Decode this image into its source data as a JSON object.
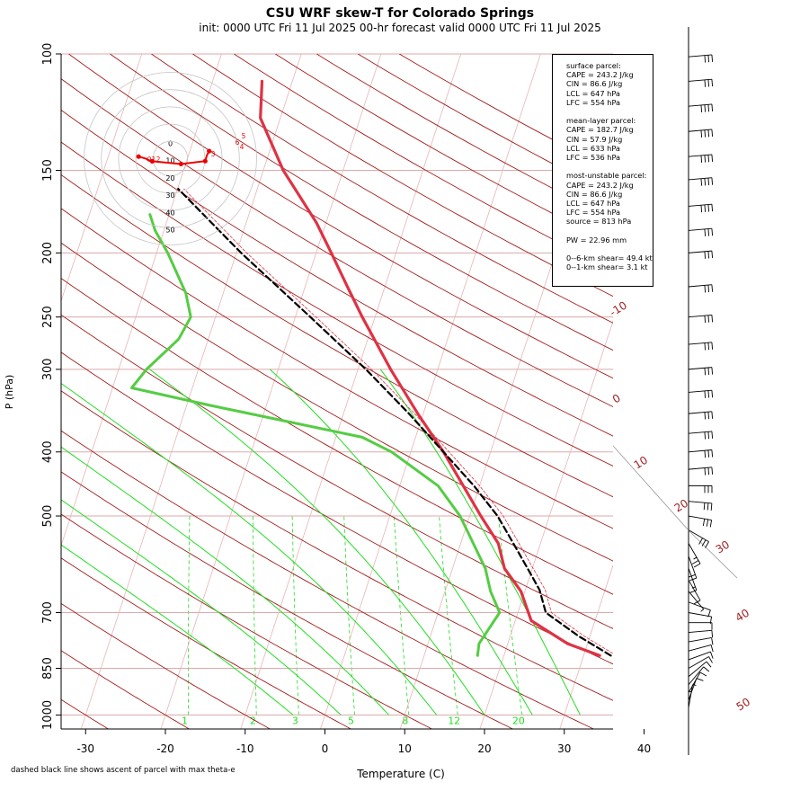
{
  "title": "CSU WRF skew-T for Colorado Springs",
  "subtitle": "init: 0000 UTC Fri 11 Jul 2025     00-hr forecast valid 0000 UTC Fri 11 Jul 2025",
  "footnote": "dashed black line shows ascent of parcel with max theta-e",
  "parcel_info": {
    "surface": [
      "surface parcel:",
      "CAPE = 243.2 J/kg",
      "CIN = 86.6 J/kg",
      "LCL = 647 hPa",
      "LFC = 554 hPa"
    ],
    "mean_layer": [
      "mean-layer parcel:",
      "CAPE = 182.7 J/kg",
      "CIN = 57.9 J/kg",
      "LCL = 633 hPa",
      "LFC = 536 hPa"
    ],
    "most_unstable": [
      "most-unstable parcel:",
      "CAPE = 243.2 J/kg",
      "CIN = 86.6 J/kg",
      "LCL = 647 hPa",
      "LFC = 554 hPa",
      "source = 813 hPa"
    ],
    "pw": [
      "PW =  22.96 mm"
    ],
    "shear": [
      "0--6-km shear= 49.4 kt",
      "0--1-km shear= 3.1 kt"
    ]
  },
  "colors": {
    "temperature": "#dd3344",
    "dewpoint": "#55cc44",
    "parcel": "#000000",
    "dry_adiabat": "#a01e1e",
    "moist_adiabat": "#22dd22",
    "isotherm": "#e8b4b4",
    "isobar": "#dcaaaa",
    "hodograph": "#ee0000"
  },
  "chart_data": {
    "type": "skew-t",
    "xlabel": "Temperature (C)",
    "ylabel": "P (hPa)",
    "pressure_ticks": [
      100,
      150,
      200,
      250,
      300,
      400,
      500,
      700,
      850,
      1000
    ],
    "temperature_ticks": [
      -30,
      -20,
      -10,
      0,
      10,
      20,
      30,
      40
    ],
    "xlim": [
      -33,
      45
    ],
    "ylim": [
      1050,
      100
    ],
    "dry_adiabat_labels": [
      "-10",
      "0",
      "10",
      "20",
      "30",
      "40",
      "50"
    ],
    "mixing_ratio_labels": [
      "1",
      "2",
      "3",
      "5",
      "8",
      "12",
      "20"
    ],
    "temperature_profile": [
      [
        813,
        32
      ],
      [
        780,
        27.5
      ],
      [
        720,
        22
      ],
      [
        650,
        19.5
      ],
      [
        600,
        16.5
      ],
      [
        550,
        14.7
      ],
      [
        500,
        11.4
      ],
      [
        400,
        4.1
      ],
      [
        350,
        -0.7
      ],
      [
        300,
        -5.9
      ],
      [
        250,
        -11.6
      ],
      [
        225,
        -14.7
      ],
      [
        200,
        -18.1
      ],
      [
        180,
        -21.2
      ],
      [
        150,
        -27.5
      ],
      [
        125,
        -32.5
      ],
      [
        110,
        -33.8
      ]
    ],
    "dewpoint_profile": [
      [
        813,
        16.7
      ],
      [
        780,
        16.4
      ],
      [
        700,
        17.7
      ],
      [
        650,
        15.7
      ],
      [
        600,
        14.1
      ],
      [
        500,
        8.8
      ],
      [
        450,
        4.8
      ],
      [
        400,
        -2.4
      ],
      [
        380,
        -6.7
      ],
      [
        360,
        -16.6
      ],
      [
        340,
        -27.1
      ],
      [
        320,
        -37.6
      ],
      [
        300,
        -36.5
      ],
      [
        270,
        -33.7
      ],
      [
        250,
        -33.1
      ],
      [
        230,
        -34.7
      ],
      [
        200,
        -38.6
      ],
      [
        185,
        -41.1
      ],
      [
        175,
        -42.4
      ]
    ],
    "parcel_profile": [
      [
        813,
        33.4
      ],
      [
        760,
        28.6
      ],
      [
        700,
        23.5
      ],
      [
        647,
        21.8
      ],
      [
        600,
        19.4
      ],
      [
        550,
        16.6
      ],
      [
        500,
        13.5
      ],
      [
        450,
        9.3
      ],
      [
        400,
        4.1
      ],
      [
        350,
        -1.8
      ],
      [
        300,
        -9.0
      ],
      [
        250,
        -18.1
      ],
      [
        200,
        -29.4
      ],
      [
        160,
        -39.9
      ]
    ],
    "hodograph": {
      "rings_kt": [
        0,
        10,
        20,
        30,
        40,
        50
      ],
      "path_uv": [
        [
          -18.4,
          1.2
        ],
        [
          -15.6,
          0.4
        ],
        [
          -14.0,
          0
        ],
        [
          -13.5,
          -0.5
        ],
        [
          -12.0,
          -1.0
        ],
        [
          -10.5,
          -1.5
        ],
        [
          6.2,
          -3.1
        ],
        [
          20.2,
          -1.4
        ],
        [
          21.2,
          2.0
        ],
        [
          22.5,
          4.4
        ]
      ],
      "point_labels": [
        "0",
        "1",
        "2",
        "3",
        "4",
        "5",
        "6"
      ]
    },
    "wind_barbs": [
      {
        "p": 1000,
        "speed_kt": 5,
        "dir": 180
      },
      {
        "p": 975,
        "speed_kt": 5,
        "dir": 190
      },
      {
        "p": 950,
        "speed_kt": 10,
        "dir": 200
      },
      {
        "p": 925,
        "speed_kt": 10,
        "dir": 210
      },
      {
        "p": 900,
        "speed_kt": 10,
        "dir": 220
      },
      {
        "p": 875,
        "speed_kt": 10,
        "dir": 230
      },
      {
        "p": 850,
        "speed_kt": 10,
        "dir": 240
      },
      {
        "p": 825,
        "speed_kt": 10,
        "dir": 250
      },
      {
        "p": 800,
        "speed_kt": 10,
        "dir": 255
      },
      {
        "p": 775,
        "speed_kt": 10,
        "dir": 260
      },
      {
        "p": 750,
        "speed_kt": 10,
        "dir": 265
      },
      {
        "p": 725,
        "speed_kt": 10,
        "dir": 270
      },
      {
        "p": 700,
        "speed_kt": 10,
        "dir": 280
      },
      {
        "p": 675,
        "speed_kt": 10,
        "dir": 290
      },
      {
        "p": 650,
        "speed_kt": 5,
        "dir": 320
      },
      {
        "p": 625,
        "speed_kt": 10,
        "dir": 330
      },
      {
        "p": 600,
        "speed_kt": 15,
        "dir": 340
      },
      {
        "p": 575,
        "speed_kt": 20,
        "dir": 340
      },
      {
        "p": 550,
        "speed_kt": 25,
        "dir": 330
      },
      {
        "p": 525,
        "speed_kt": 30,
        "dir": 300
      },
      {
        "p": 500,
        "speed_kt": 30,
        "dir": 280
      },
      {
        "p": 475,
        "speed_kt": 30,
        "dir": 275
      },
      {
        "p": 450,
        "speed_kt": 30,
        "dir": 270
      },
      {
        "p": 425,
        "speed_kt": 30,
        "dir": 265
      },
      {
        "p": 400,
        "speed_kt": 30,
        "dir": 265
      },
      {
        "p": 375,
        "speed_kt": 30,
        "dir": 265
      },
      {
        "p": 350,
        "speed_kt": 30,
        "dir": 265
      },
      {
        "p": 325,
        "speed_kt": 30,
        "dir": 265
      },
      {
        "p": 300,
        "speed_kt": 30,
        "dir": 265
      },
      {
        "p": 275,
        "speed_kt": 30,
        "dir": 265
      },
      {
        "p": 250,
        "speed_kt": 30,
        "dir": 265
      },
      {
        "p": 225,
        "speed_kt": 30,
        "dir": 265
      },
      {
        "p": 200,
        "speed_kt": 30,
        "dir": 265
      },
      {
        "p": 185,
        "speed_kt": 30,
        "dir": 265
      },
      {
        "p": 170,
        "speed_kt": 40,
        "dir": 265
      },
      {
        "p": 155,
        "speed_kt": 40,
        "dir": 265
      },
      {
        "p": 143,
        "speed_kt": 40,
        "dir": 265
      },
      {
        "p": 131,
        "speed_kt": 40,
        "dir": 265
      },
      {
        "p": 120,
        "speed_kt": 40,
        "dir": 265
      },
      {
        "p": 110,
        "speed_kt": 30,
        "dir": 265
      },
      {
        "p": 101,
        "speed_kt": 30,
        "dir": 265
      }
    ]
  }
}
